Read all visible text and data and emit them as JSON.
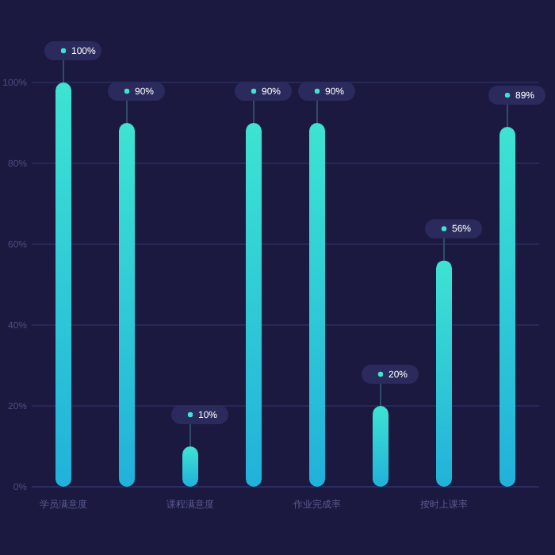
{
  "chart_data": {
    "type": "bar",
    "categories": [
      "学员满意度",
      null,
      "课程满意度",
      null,
      "作业完成率",
      null,
      "按时上课率",
      null
    ],
    "series": [
      {
        "color": "#3ee3d2",
        "values": [
          100,
          90,
          10,
          90,
          90,
          20,
          56,
          89
        ],
        "value_labels": [
          "100%",
          "90%",
          "10%",
          "90%",
          "90%",
          "20%",
          "56%",
          "89%"
        ]
      }
    ],
    "ylim": [
      0,
      100
    ],
    "yticks": [
      {
        "value": 0,
        "label": "0%"
      },
      {
        "value": 20,
        "label": "20%"
      },
      {
        "value": 40,
        "label": "40%"
      },
      {
        "value": 60,
        "label": "60%"
      },
      {
        "value": 80,
        "label": "80%"
      },
      {
        "value": 100,
        "label": "100%"
      }
    ],
    "grid": "y"
  }
}
